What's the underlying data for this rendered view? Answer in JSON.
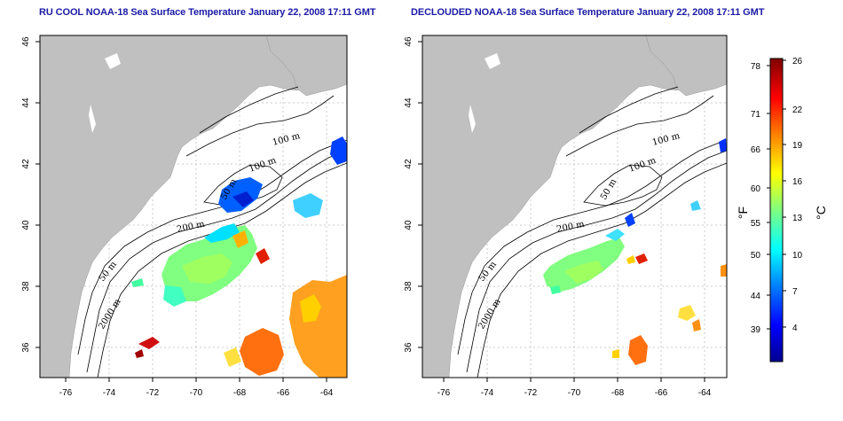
{
  "panels": [
    {
      "id": "left",
      "title": "RU COOL NOAA-18 Sea Surface Temperature January 22, 2008 17:11 GMT",
      "x_ticks": [
        "-76",
        "-74",
        "-72",
        "-70",
        "-68",
        "-66",
        "-64"
      ],
      "y_ticks": [
        "36",
        "38",
        "40",
        "42",
        "44",
        "46"
      ],
      "contour_labels": [
        "100 m",
        "100 m",
        "50 m",
        "200 m",
        "50 m",
        "2000 m"
      ]
    },
    {
      "id": "right",
      "title": "DECLOUDED NOAA-18 Sea Surface Temperature January 22, 2008 17:11 GMT",
      "x_ticks": [
        "-76",
        "-74",
        "-72",
        "-70",
        "-68",
        "-66",
        "-64"
      ],
      "y_ticks": [
        "36",
        "38",
        "40",
        "42",
        "44",
        "46"
      ],
      "contour_labels": [
        "100 m",
        "100 m",
        "50 m",
        "200 m",
        "50 m",
        "2000 m"
      ]
    }
  ],
  "colorbar": {
    "fahrenheit_label": "°F",
    "celsius_label": "°C",
    "fahrenheit_ticks": [
      "78",
      "71",
      "66",
      "60",
      "55",
      "50",
      "44",
      "39"
    ],
    "celsius_ticks": [
      "26",
      "22",
      "19",
      "16",
      "13",
      "10",
      "7",
      "4"
    ],
    "colors": [
      "#00008f",
      "#0000ff",
      "#0080ff",
      "#00ffff",
      "#80ff80",
      "#ffff00",
      "#ff8000",
      "#ff0000",
      "#800000"
    ]
  },
  "map_colors": {
    "land": "#c0c0c0",
    "ocean": "#ffffff",
    "contour": "#000000",
    "grid": "#bbbbbb"
  }
}
